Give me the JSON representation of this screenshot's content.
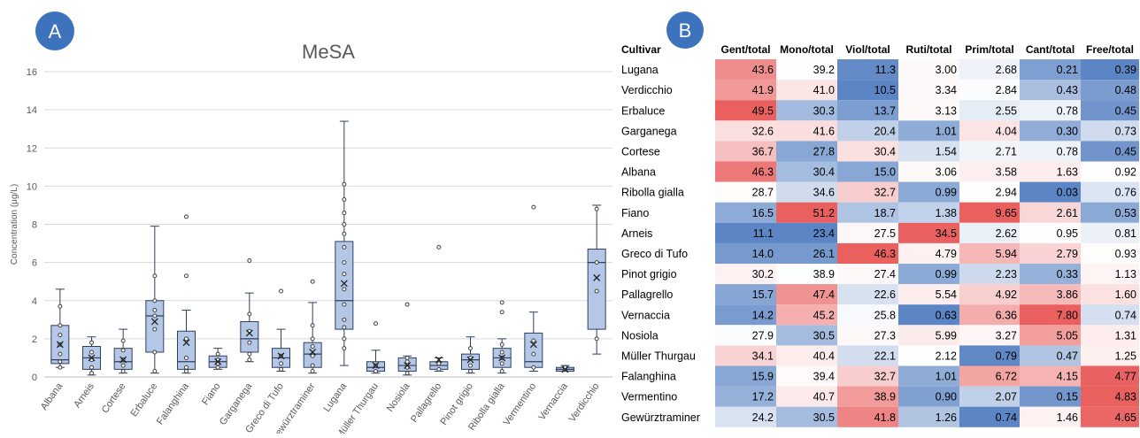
{
  "panels": {
    "a_label": "A",
    "b_label": "B"
  },
  "colors": {
    "box_fill": "#b4c7e7",
    "box_stroke": "#2f3f5f",
    "badge": "#3d72bd",
    "heat_low": "#5b85c4",
    "heat_mid": "#ffffff",
    "heat_high": "#e9605f"
  },
  "chart_data": [
    {
      "type": "box",
      "title": "MeSA",
      "ylabel": "Concentration (µg/L)",
      "ylim": [
        0,
        16
      ],
      "yticks": [
        0,
        2,
        4,
        6,
        8,
        10,
        12,
        14,
        16
      ],
      "grid": true,
      "categories": [
        "Albana",
        "Arneis",
        "Cortese",
        "Erbaluce",
        "Falanghina",
        "Fiano",
        "Garganega",
        "Greco di Tufo",
        "Gewürztraminer",
        "Lugana",
        "Müller Thurgau",
        "Nosiola",
        "Pallagrello",
        "Pinot grigio",
        "Ribolla gialla",
        "Vermentino",
        "Vernaccia",
        "Verdicchio"
      ],
      "boxes": [
        {
          "min": 0.5,
          "q1": 0.7,
          "median": 0.9,
          "q3": 2.7,
          "max": 4.6,
          "mean": 1.7,
          "points": [
            0.5,
            0.8,
            1.2,
            1.7,
            2.2,
            2.7,
            3.7
          ]
        },
        {
          "min": 0.1,
          "q1": 0.4,
          "median": 1.0,
          "q3": 1.6,
          "max": 2.1,
          "mean": 1.0,
          "points": [
            0.2,
            0.5,
            0.9,
            1.3,
            1.8
          ]
        },
        {
          "min": 0.2,
          "q1": 0.4,
          "median": 0.8,
          "q3": 1.5,
          "max": 2.5,
          "mean": 0.9,
          "points": [
            0.3,
            0.6,
            0.9,
            1.4,
            1.9
          ]
        },
        {
          "min": 0.2,
          "q1": 1.3,
          "median": 3.2,
          "q3": 4.0,
          "max": 7.9,
          "mean": 2.9,
          "points": [
            0.3,
            1.3,
            2.5,
            3.2,
            3.5,
            4.0,
            5.3
          ]
        },
        {
          "min": 0.2,
          "q1": 0.4,
          "median": 0.8,
          "q3": 2.4,
          "max": 3.5,
          "mean": 1.8,
          "points": [
            0.3,
            0.5,
            1.0,
            2.0,
            5.3,
            8.4
          ]
        },
        {
          "min": 0.4,
          "q1": 0.5,
          "median": 0.8,
          "q3": 1.1,
          "max": 1.5,
          "mean": 0.8,
          "points": [
            0.5,
            0.7,
            0.9,
            1.2
          ]
        },
        {
          "min": 0.8,
          "q1": 1.3,
          "median": 2.0,
          "q3": 2.9,
          "max": 4.4,
          "mean": 2.3,
          "points": [
            0.9,
            1.2,
            1.8,
            2.4,
            3.3,
            6.1
          ]
        },
        {
          "min": 0.3,
          "q1": 0.5,
          "median": 1.0,
          "q3": 1.5,
          "max": 2.5,
          "mean": 1.1,
          "points": [
            0.4,
            0.7,
            1.1,
            4.5
          ]
        },
        {
          "min": 0.2,
          "q1": 0.5,
          "median": 1.2,
          "q3": 1.8,
          "max": 3.9,
          "mean": 1.3,
          "points": [
            0.3,
            0.6,
            1.1,
            1.6,
            2.0,
            2.7,
            5.0
          ]
        },
        {
          "min": 0.6,
          "q1": 2.5,
          "median": 4.0,
          "q3": 7.1,
          "max": 13.4,
          "mean": 4.9,
          "points": [
            1.5,
            2.0,
            2.6,
            3.0,
            3.8,
            4.6,
            5.4,
            6.0,
            6.8,
            7.5,
            8.0,
            8.6,
            9.3,
            10.1
          ]
        },
        {
          "min": 0.2,
          "q1": 0.3,
          "median": 0.5,
          "q3": 0.8,
          "max": 1.4,
          "mean": 0.6,
          "points": [
            0.3,
            0.6,
            2.8
          ]
        },
        {
          "min": 0.1,
          "q1": 0.3,
          "median": 0.6,
          "q3": 1.0,
          "max": 1.1,
          "mean": 0.6,
          "points": [
            0.2,
            0.5,
            0.8,
            1.0,
            3.8
          ]
        },
        {
          "min": 0.3,
          "q1": 0.4,
          "median": 0.6,
          "q3": 0.8,
          "max": 1.0,
          "mean": 0.9,
          "points": [
            0.4,
            0.7,
            6.8
          ]
        },
        {
          "min": 0.2,
          "q1": 0.4,
          "median": 0.9,
          "q3": 1.2,
          "max": 2.1,
          "mean": 0.9,
          "points": [
            0.3,
            0.6,
            1.0,
            1.5
          ]
        },
        {
          "min": 0.2,
          "q1": 0.5,
          "median": 1.0,
          "q3": 1.5,
          "max": 2.0,
          "mean": 1.0,
          "points": [
            0.3,
            0.7,
            1.0,
            1.3,
            1.7,
            3.4,
            3.9
          ]
        },
        {
          "min": 0.3,
          "q1": 0.5,
          "median": 0.8,
          "q3": 2.3,
          "max": 3.4,
          "mean": 1.7,
          "points": [
            0.5,
            1.2,
            1.9,
            8.9
          ]
        },
        {
          "min": 0.3,
          "q1": 0.3,
          "median": 0.4,
          "q3": 0.5,
          "max": 0.6,
          "mean": 0.4,
          "points": [
            0.4,
            0.5
          ]
        },
        {
          "min": 1.2,
          "q1": 2.5,
          "median": 6.0,
          "q3": 6.7,
          "max": 9.0,
          "mean": 5.2,
          "points": [
            2.0,
            4.5,
            6.0,
            8.8
          ]
        }
      ]
    },
    {
      "type": "heatmap",
      "row_header": "Cultivar",
      "columns": [
        "Gent/total",
        "Mono/total",
        "Viol/total",
        "Ruti/total",
        "Prim/total",
        "Cant/total",
        "Free/total"
      ],
      "rows": [
        "Lugana",
        "Verdicchio",
        "Erbaluce",
        "Garganega",
        "Cortese",
        "Albana",
        "Ribolla gialla",
        "Fiano",
        "Arneis",
        "Greco di Tufo",
        "Pinot grigio",
        "Pallagrello",
        "Vernaccia",
        "Nosiola",
        "Müller Thurgau",
        "Falanghina",
        "Vermentino",
        "Gewürztraminer"
      ],
      "values": [
        [
          "43.6",
          "39.2",
          "11.3",
          "3.00",
          "2.68",
          "0.21",
          "0.39"
        ],
        [
          "41.9",
          "41.0",
          "10.5",
          "3.34",
          "2.84",
          "0.43",
          "0.48"
        ],
        [
          "49.5",
          "30.3",
          "13.7",
          "3.13",
          "2.55",
          "0.78",
          "0.45"
        ],
        [
          "32.6",
          "41.6",
          "20.4",
          "1.01",
          "4.04",
          "0.30",
          "0.73"
        ],
        [
          "36.7",
          "27.8",
          "30.4",
          "1.54",
          "2.71",
          "0.78",
          "0.45"
        ],
        [
          "46.3",
          "30.4",
          "15.0",
          "3.06",
          "3.58",
          "1.63",
          "0.92"
        ],
        [
          "28.7",
          "34.6",
          "32.7",
          "0.99",
          "2.94",
          "0.03",
          "0.76"
        ],
        [
          "16.5",
          "51.2",
          "18.7",
          "1.38",
          "9.65",
          "2.61",
          "0.53"
        ],
        [
          "11.1",
          "23.4",
          "27.5",
          "34.5",
          "2.62",
          "0.95",
          "0.81"
        ],
        [
          "14.0",
          "26.1",
          "46.3",
          "4.79",
          "5.94",
          "2.79",
          "0.93"
        ],
        [
          "30.2",
          "38.9",
          "27.4",
          "0.99",
          "2.23",
          "0.33",
          "1.13"
        ],
        [
          "15.7",
          "47.4",
          "22.6",
          "5.54",
          "4.92",
          "3.86",
          "1.60"
        ],
        [
          "14.2",
          "45.2",
          "25.8",
          "0.63",
          "6.36",
          "7.80",
          "0.74"
        ],
        [
          "27.9",
          "30.5",
          "27.3",
          "5.99",
          "3.27",
          "5.05",
          "1.31"
        ],
        [
          "34.1",
          "40.4",
          "22.1",
          "2.12",
          "0.79",
          "0.47",
          "1.25"
        ],
        [
          "15.9",
          "39.4",
          "32.7",
          "1.01",
          "6.72",
          "4.15",
          "4.77"
        ],
        [
          "17.2",
          "40.7",
          "38.9",
          "0.90",
          "2.07",
          "0.15",
          "4.83"
        ],
        [
          "24.2",
          "30.5",
          "41.8",
          "1.26",
          "0.74",
          "1.46",
          "4.65"
        ]
      ]
    }
  ]
}
